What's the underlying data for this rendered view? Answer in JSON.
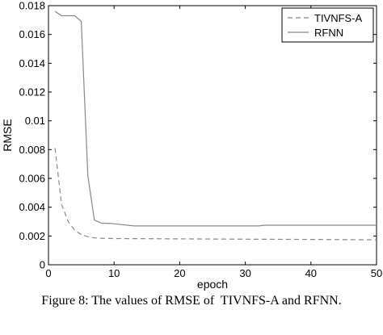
{
  "caption": "Figure 8: The values of RMSE of  TIVNFS-A and RFNN.",
  "chart_data": {
    "type": "line",
    "xlabel": "epoch",
    "ylabel": "RMSE",
    "xlim": [
      0,
      50
    ],
    "ylim": [
      0,
      0.018
    ],
    "xticks": [
      0,
      10,
      20,
      30,
      40,
      50
    ],
    "xtick_labels": [
      "0",
      "10",
      "20",
      "30",
      "40",
      "50"
    ],
    "yticks": [
      0,
      0.002,
      0.004,
      0.006,
      0.008,
      0.01,
      0.012,
      0.014,
      0.016,
      0.018
    ],
    "ytick_labels": [
      "0",
      "0.002",
      "0.004",
      "0.006",
      "0.008",
      "0.01",
      "0.012",
      "0.014",
      "0.016",
      "0.018"
    ],
    "grid": false,
    "legend_position": "top-right",
    "series": [
      {
        "name": "TIVNFS-A",
        "style": "dashed",
        "color": "#888888",
        "x": [
          1,
          2,
          3,
          4,
          5,
          6,
          7,
          8,
          10,
          15,
          20,
          30,
          40,
          50
        ],
        "y": [
          0.0081,
          0.0042,
          0.003,
          0.0024,
          0.0021,
          0.00195,
          0.00187,
          0.00184,
          0.00182,
          0.00181,
          0.0018,
          0.00178,
          0.00176,
          0.00173
        ]
      },
      {
        "name": "RFNN",
        "style": "solid",
        "color": "#888888",
        "x": [
          1,
          2,
          3,
          4,
          5,
          6,
          7,
          8,
          10,
          13,
          20,
          32,
          33,
          40,
          50
        ],
        "y": [
          0.0176,
          0.0173,
          0.0173,
          0.0173,
          0.0169,
          0.0062,
          0.0031,
          0.0029,
          0.00285,
          0.0027,
          0.0027,
          0.0027,
          0.00275,
          0.00275,
          0.00275
        ]
      }
    ]
  }
}
